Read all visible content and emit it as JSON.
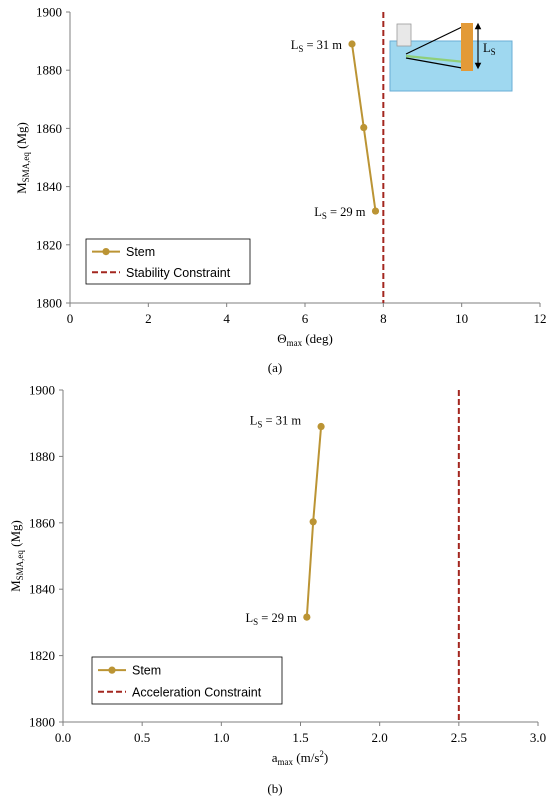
{
  "colors": {
    "stem": "#bb9434",
    "constraint": "#a3261f",
    "axis": "#7f7f7f",
    "inset_water": "#9fd8f0",
    "inset_water_edge": "#6aaed6",
    "inset_spar": "#e39a37",
    "inset_green": "#8fcf7a"
  },
  "chart_data": [
    {
      "type": "line",
      "panel": "a",
      "caption": "(a)",
      "xlabel_main": "Θ",
      "xlabel_sub": "max",
      "xlabel_unit": " (deg)",
      "ylabel_main": "M",
      "ylabel_sub": "SMA,eq",
      "ylabel_unit": " (Mg)",
      "xlim": [
        0,
        12
      ],
      "ylim": [
        1800,
        1900
      ],
      "xticks": [
        0,
        2,
        4,
        6,
        8,
        10,
        12
      ],
      "yticks": [
        1800,
        1820,
        1840,
        1860,
        1880,
        1900
      ],
      "series": [
        {
          "name": "Stem",
          "x": [
            7.2,
            7.5,
            7.8
          ],
          "y": [
            1889,
            1860.3,
            1831.6
          ]
        }
      ],
      "constraint": {
        "name": "Stability Constraint",
        "x": 8
      },
      "annotations": [
        {
          "main": "L",
          "sub": "S",
          "rest": " = 31 m",
          "x": 7.2,
          "y": 1889,
          "side": "left"
        },
        {
          "main": "L",
          "sub": "S",
          "rest": " = 29 m",
          "x": 7.8,
          "y": 1831.6,
          "side": "left"
        }
      ],
      "inset_label": {
        "main": "L",
        "sub": "S"
      },
      "legend_position": "bottom-left"
    },
    {
      "type": "line",
      "panel": "b",
      "caption": "(b)",
      "xlabel_main": "a",
      "xlabel_sub": "max",
      "xlabel_unit": " (m/s",
      "xlabel_sup": "2",
      "xlabel_close": ")",
      "ylabel_main": "M",
      "ylabel_sub": "SMA,eq",
      "ylabel_unit": " (Mg)",
      "xlim": [
        0,
        3
      ],
      "ylim": [
        1800,
        1900
      ],
      "xticks": [
        "0.0",
        "0.5",
        "1.0",
        "1.5",
        "2.0",
        "2.5",
        "3.0"
      ],
      "yticks": [
        1800,
        1820,
        1840,
        1860,
        1880,
        1900
      ],
      "series": [
        {
          "name": "Stem",
          "x": [
            1.63,
            1.58,
            1.54
          ],
          "y": [
            1889,
            1860.3,
            1831.6
          ]
        }
      ],
      "constraint": {
        "name": "Acceleration Constraint",
        "x": 2.5
      },
      "annotations": [
        {
          "main": "L",
          "sub": "S",
          "rest": " = 31 m",
          "x": 1.63,
          "y": 1889,
          "side": "left-up"
        },
        {
          "main": "L",
          "sub": "S",
          "rest": " = 29 m",
          "x": 1.54,
          "y": 1831.6,
          "side": "left"
        }
      ],
      "legend_position": "bottom-left"
    }
  ]
}
